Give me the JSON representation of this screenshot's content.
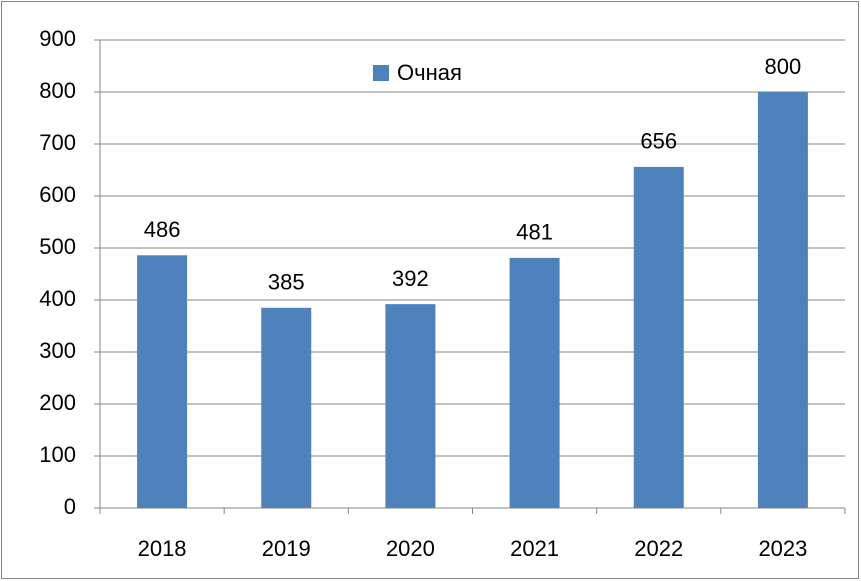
{
  "chart_data": {
    "type": "bar",
    "categories": [
      "2018",
      "2019",
      "2020",
      "2021",
      "2022",
      "2023"
    ],
    "series": [
      {
        "name": "Очная",
        "color": "#4f81bd",
        "values": [
          486,
          385,
          392,
          481,
          656,
          800
        ]
      }
    ],
    "ylim": [
      0,
      900
    ],
    "yticks": [
      0,
      100,
      200,
      300,
      400,
      500,
      600,
      700,
      800,
      900
    ],
    "grid": true,
    "legend": "top"
  }
}
